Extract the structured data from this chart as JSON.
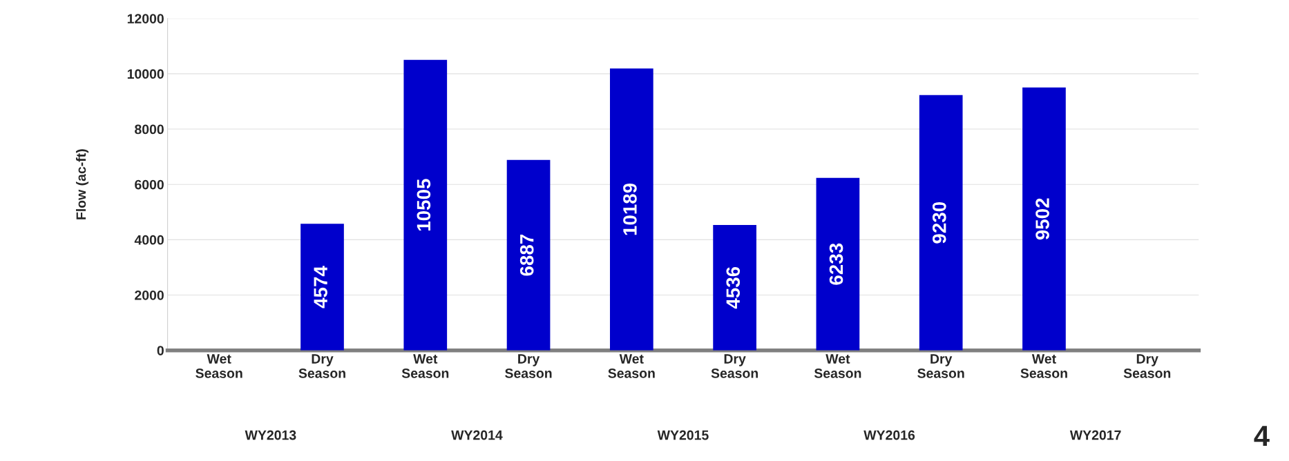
{
  "chart_data": {
    "type": "bar",
    "ylabel": "Flow (ac-ft)",
    "categories": [
      "Wet\nSeason",
      "Dry\nSeason",
      "Wet\nSeason",
      "Dry\nSeason",
      "Wet\nSeason",
      "Dry\nSeason",
      "Wet\nSeason",
      "Dry\nSeason",
      "Wet\nSeason",
      "Dry\nSeason"
    ],
    "values": [
      null,
      4574,
      10505,
      6887,
      10189,
      4536,
      6233,
      9230,
      9502,
      null
    ],
    "color": "#0000cc",
    "data_labels": true,
    "ylim": [
      0,
      12000
    ],
    "yticks": [
      0,
      2000,
      4000,
      6000,
      8000,
      10000,
      12000
    ],
    "grid": "y",
    "annotations": [
      "WY2013",
      "WY2014",
      "WY2015",
      "WY2016",
      "WY2017",
      "4"
    ]
  }
}
